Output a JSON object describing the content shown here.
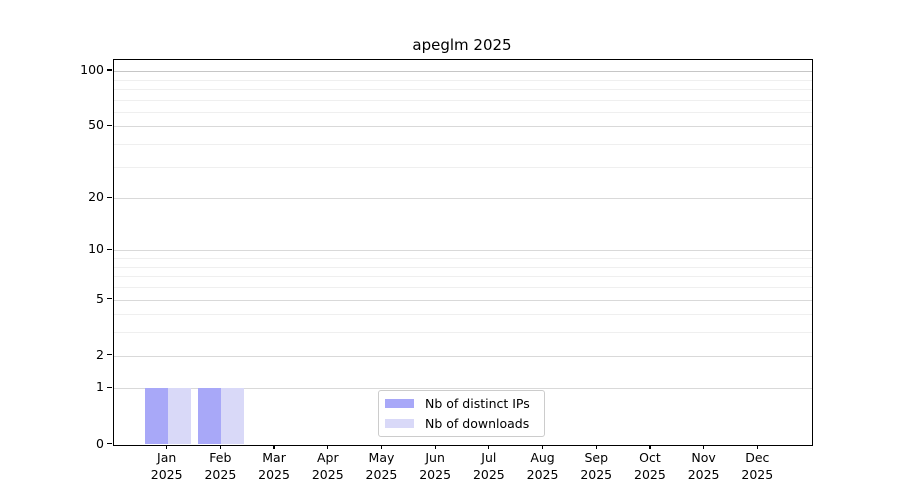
{
  "title": "apeglm 2025",
  "chart_data": {
    "type": "bar",
    "title": "apeglm 2025",
    "categories": [
      "Jan 2025",
      "Feb 2025",
      "Mar 2025",
      "Apr 2025",
      "May 2025",
      "Jun 2025",
      "Jul 2025",
      "Aug 2025",
      "Sep 2025",
      "Oct 2025",
      "Nov 2025",
      "Dec 2025"
    ],
    "series": [
      {
        "name": "Nb of distinct IPs",
        "color": "#a8a8f8",
        "values": [
          1,
          1,
          0,
          0,
          0,
          0,
          0,
          0,
          0,
          0,
          0,
          0
        ]
      },
      {
        "name": "Nb of downloads",
        "color": "#d9d9f8",
        "values": [
          1,
          1,
          0,
          0,
          0,
          0,
          0,
          0,
          0,
          0,
          0,
          0
        ]
      }
    ],
    "xlabel": "",
    "ylabel": "",
    "y_ticks": [
      0,
      1,
      2,
      5,
      10,
      20,
      50,
      100
    ],
    "y_minor_ticks": [
      3,
      4,
      6,
      7,
      8,
      9,
      30,
      40,
      60,
      70,
      80,
      90
    ],
    "y_scale": "log10(value+1)",
    "ylim": [
      0,
      115
    ],
    "grid": "horizontal, major and minor",
    "legend_position": "lower center"
  },
  "legend": {
    "items": [
      {
        "label": "Nb of distinct IPs",
        "color": "#a8a8f8"
      },
      {
        "label": "Nb of downloads",
        "color": "#d9d9f8"
      }
    ]
  },
  "colors": {
    "axis": "#000000",
    "grid_major": "#d9d9d9",
    "grid_minor": "#efefef",
    "grid_top_line": "#c6c6c6",
    "legend_border": "#cccccc",
    "background": "#ffffff"
  }
}
